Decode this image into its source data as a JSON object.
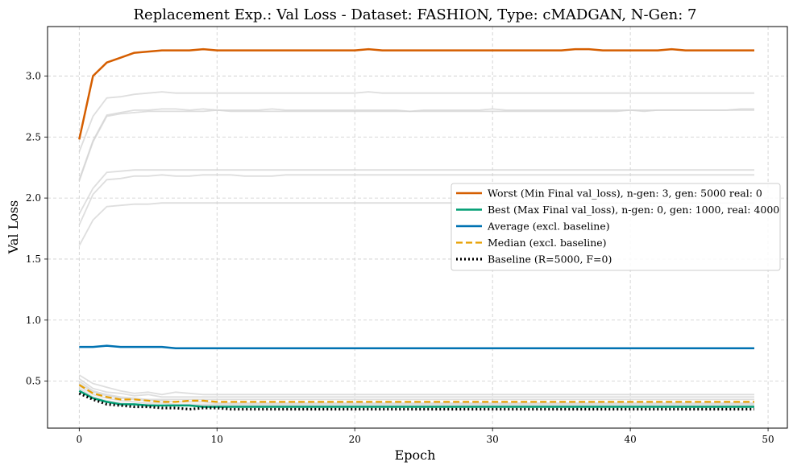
{
  "chart_data": {
    "type": "line",
    "title": "Replacement Exp.: Val Loss - Dataset: FASHION, Type: cMADGAN, N-Gen: 7",
    "xlabel": "Epoch",
    "ylabel": "Val Loss",
    "xlim": [
      -2.3,
      51.4
    ],
    "ylim": [
      0.115,
      3.405
    ],
    "xticks": [
      0,
      10,
      20,
      30,
      40,
      50
    ],
    "yticks": [
      0.5,
      1.0,
      1.5,
      2.0,
      2.5,
      3.0
    ],
    "xtick_labels": [
      "0",
      "10",
      "20",
      "30",
      "40",
      "50"
    ],
    "ytick_labels": [
      "0.5",
      "1.0",
      "1.5",
      "2.0",
      "2.5",
      "3.0"
    ],
    "grid": true,
    "legend_position": "center-right",
    "x": [
      0,
      1,
      2,
      3,
      4,
      5,
      6,
      7,
      8,
      9,
      10,
      11,
      12,
      13,
      14,
      15,
      16,
      17,
      18,
      19,
      20,
      21,
      22,
      23,
      24,
      25,
      26,
      27,
      28,
      29,
      30,
      31,
      32,
      33,
      34,
      35,
      36,
      37,
      38,
      39,
      40,
      41,
      42,
      43,
      44,
      45,
      46,
      47,
      48,
      49
    ],
    "series": [
      {
        "name": "Worst (Min Final val_loss), n-gen: 3, gen: 5000 real: 0",
        "color": "#d55e00",
        "dash": "solid",
        "values": [
          2.48,
          3.0,
          3.11,
          3.15,
          3.19,
          3.2,
          3.21,
          3.21,
          3.21,
          3.22,
          3.21,
          3.21,
          3.21,
          3.21,
          3.21,
          3.21,
          3.21,
          3.21,
          3.21,
          3.21,
          3.21,
          3.22,
          3.21,
          3.21,
          3.21,
          3.21,
          3.21,
          3.21,
          3.21,
          3.21,
          3.21,
          3.21,
          3.21,
          3.21,
          3.21,
          3.21,
          3.22,
          3.22,
          3.21,
          3.21,
          3.21,
          3.21,
          3.21,
          3.22,
          3.21,
          3.21,
          3.21,
          3.21,
          3.21,
          3.21
        ]
      },
      {
        "name": "Best (Max Final val_loss), n-gen: 0, gen: 1000, real: 4000",
        "color": "#009e73",
        "dash": "solid",
        "values": [
          0.42,
          0.36,
          0.33,
          0.31,
          0.31,
          0.3,
          0.3,
          0.3,
          0.3,
          0.29,
          0.29,
          0.29,
          0.29,
          0.29,
          0.29,
          0.29,
          0.29,
          0.29,
          0.29,
          0.29,
          0.29,
          0.29,
          0.29,
          0.29,
          0.29,
          0.29,
          0.29,
          0.29,
          0.29,
          0.29,
          0.29,
          0.29,
          0.29,
          0.29,
          0.29,
          0.29,
          0.29,
          0.29,
          0.29,
          0.29,
          0.29,
          0.29,
          0.29,
          0.29,
          0.29,
          0.29,
          0.29,
          0.29,
          0.29,
          0.29
        ]
      },
      {
        "name": "Average (excl. baseline)",
        "color": "#0072b2",
        "dash": "solid",
        "values": [
          0.78,
          0.78,
          0.79,
          0.78,
          0.78,
          0.78,
          0.78,
          0.77,
          0.77,
          0.77,
          0.77,
          0.77,
          0.77,
          0.77,
          0.77,
          0.77,
          0.77,
          0.77,
          0.77,
          0.77,
          0.77,
          0.77,
          0.77,
          0.77,
          0.77,
          0.77,
          0.77,
          0.77,
          0.77,
          0.77,
          0.77,
          0.77,
          0.77,
          0.77,
          0.77,
          0.77,
          0.77,
          0.77,
          0.77,
          0.77,
          0.77,
          0.77,
          0.77,
          0.77,
          0.77,
          0.77,
          0.77,
          0.77,
          0.77,
          0.77
        ]
      },
      {
        "name": "Median (excl. baseline)",
        "color": "#e69f00",
        "dash": "dashed",
        "values": [
          0.47,
          0.4,
          0.37,
          0.35,
          0.35,
          0.34,
          0.33,
          0.33,
          0.34,
          0.34,
          0.33,
          0.33,
          0.33,
          0.33,
          0.33,
          0.33,
          0.33,
          0.33,
          0.33,
          0.33,
          0.33,
          0.33,
          0.33,
          0.33,
          0.33,
          0.33,
          0.33,
          0.33,
          0.33,
          0.33,
          0.33,
          0.33,
          0.33,
          0.33,
          0.33,
          0.33,
          0.33,
          0.33,
          0.33,
          0.33,
          0.33,
          0.33,
          0.33,
          0.33,
          0.33,
          0.33,
          0.33,
          0.33,
          0.33,
          0.33
        ]
      },
      {
        "name": "Baseline (R=5000, F=0)",
        "color": "#000000",
        "dash": "dotted",
        "values": [
          0.4,
          0.35,
          0.31,
          0.3,
          0.29,
          0.29,
          0.28,
          0.28,
          0.27,
          0.28,
          0.28,
          0.27,
          0.27,
          0.27,
          0.27,
          0.27,
          0.27,
          0.27,
          0.27,
          0.27,
          0.27,
          0.27,
          0.27,
          0.27,
          0.27,
          0.27,
          0.27,
          0.27,
          0.27,
          0.27,
          0.27,
          0.27,
          0.27,
          0.27,
          0.27,
          0.27,
          0.27,
          0.27,
          0.27,
          0.27,
          0.27,
          0.27,
          0.27,
          0.27,
          0.27,
          0.27,
          0.27,
          0.27,
          0.27,
          0.27
        ]
      }
    ],
    "background_series_color": "#d3d3d3",
    "background_series": [
      {
        "values": [
          2.38,
          2.67,
          2.82,
          2.83,
          2.85,
          2.86,
          2.87,
          2.86,
          2.86,
          2.86,
          2.86,
          2.86,
          2.86,
          2.86,
          2.86,
          2.86,
          2.86,
          2.86,
          2.86,
          2.86,
          2.86,
          2.87,
          2.86,
          2.86,
          2.86,
          2.86,
          2.86,
          2.86,
          2.86,
          2.86,
          2.86,
          2.86,
          2.86,
          2.86,
          2.86,
          2.86,
          2.86,
          2.86,
          2.86,
          2.86,
          2.86,
          2.86,
          2.86,
          2.86,
          2.86,
          2.86,
          2.86,
          2.86,
          2.86,
          2.86
        ]
      },
      {
        "values": [
          2.15,
          2.47,
          2.68,
          2.7,
          2.72,
          2.72,
          2.73,
          2.73,
          2.72,
          2.73,
          2.72,
          2.72,
          2.72,
          2.72,
          2.73,
          2.72,
          2.72,
          2.72,
          2.72,
          2.72,
          2.72,
          2.72,
          2.72,
          2.72,
          2.71,
          2.72,
          2.72,
          2.72,
          2.72,
          2.72,
          2.73,
          2.72,
          2.72,
          2.72,
          2.72,
          2.72,
          2.72,
          2.72,
          2.72,
          2.72,
          2.72,
          2.71,
          2.72,
          2.72,
          2.72,
          2.72,
          2.72,
          2.72,
          2.72,
          2.72
        ]
      },
      {
        "values": [
          2.14,
          2.46,
          2.67,
          2.69,
          2.7,
          2.71,
          2.71,
          2.71,
          2.71,
          2.71,
          2.72,
          2.71,
          2.71,
          2.71,
          2.71,
          2.71,
          2.71,
          2.71,
          2.71,
          2.71,
          2.71,
          2.71,
          2.71,
          2.71,
          2.71,
          2.71,
          2.71,
          2.71,
          2.71,
          2.71,
          2.71,
          2.71,
          2.71,
          2.71,
          2.71,
          2.71,
          2.71,
          2.71,
          2.71,
          2.71,
          2.72,
          2.72,
          2.72,
          2.72,
          2.72,
          2.72,
          2.72,
          2.72,
          2.73,
          2.73
        ]
      },
      {
        "values": [
          1.87,
          2.08,
          2.21,
          2.22,
          2.23,
          2.23,
          2.23,
          2.23,
          2.23,
          2.23,
          2.23,
          2.23,
          2.23,
          2.23,
          2.23,
          2.23,
          2.23,
          2.23,
          2.23,
          2.23,
          2.23,
          2.23,
          2.23,
          2.23,
          2.23,
          2.23,
          2.23,
          2.23,
          2.23,
          2.23,
          2.23,
          2.23,
          2.23,
          2.23,
          2.23,
          2.23,
          2.23,
          2.23,
          2.23,
          2.23,
          2.23,
          2.23,
          2.23,
          2.23,
          2.23,
          2.23,
          2.23,
          2.23,
          2.23,
          2.23
        ]
      },
      {
        "values": [
          1.78,
          2.03,
          2.15,
          2.16,
          2.18,
          2.18,
          2.19,
          2.18,
          2.18,
          2.19,
          2.19,
          2.19,
          2.18,
          2.18,
          2.18,
          2.19,
          2.19,
          2.19,
          2.19,
          2.19,
          2.19,
          2.19,
          2.19,
          2.19,
          2.19,
          2.19,
          2.19,
          2.19,
          2.19,
          2.19,
          2.19,
          2.19,
          2.19,
          2.19,
          2.19,
          2.19,
          2.19,
          2.19,
          2.19,
          2.19,
          2.19,
          2.19,
          2.19,
          2.19,
          2.19,
          2.19,
          2.19,
          2.19,
          2.19,
          2.19
        ]
      },
      {
        "values": [
          1.61,
          1.82,
          1.93,
          1.94,
          1.95,
          1.95,
          1.96,
          1.96,
          1.96,
          1.96,
          1.96,
          1.96,
          1.96,
          1.96,
          1.96,
          1.96,
          1.96,
          1.96,
          1.96,
          1.96,
          1.96,
          1.96,
          1.96,
          1.96,
          1.96,
          1.96,
          1.96,
          1.96,
          1.96,
          1.96,
          1.96,
          1.96,
          1.96,
          1.96,
          1.96,
          1.96,
          1.96,
          1.96,
          1.96,
          1.96,
          1.96,
          1.96,
          1.96,
          1.96,
          1.96,
          1.96,
          1.96,
          1.96,
          1.96,
          1.96
        ]
      },
      {
        "values": [
          0.55,
          0.48,
          0.45,
          0.42,
          0.4,
          0.41,
          0.39,
          0.41,
          0.4,
          0.39,
          0.39,
          0.39,
          0.39,
          0.39,
          0.39,
          0.39,
          0.39,
          0.39,
          0.39,
          0.39,
          0.39,
          0.39,
          0.39,
          0.39,
          0.39,
          0.39,
          0.39,
          0.39,
          0.39,
          0.39,
          0.39,
          0.39,
          0.39,
          0.39,
          0.39,
          0.39,
          0.39,
          0.39,
          0.39,
          0.39,
          0.39,
          0.39,
          0.39,
          0.39,
          0.39,
          0.39,
          0.39,
          0.39,
          0.39,
          0.39
        ]
      },
      {
        "values": [
          0.52,
          0.44,
          0.41,
          0.4,
          0.38,
          0.39,
          0.37,
          0.37,
          0.37,
          0.37,
          0.37,
          0.37,
          0.37,
          0.37,
          0.37,
          0.37,
          0.37,
          0.37,
          0.37,
          0.37,
          0.37,
          0.37,
          0.37,
          0.37,
          0.37,
          0.37,
          0.37,
          0.37,
          0.37,
          0.37,
          0.37,
          0.37,
          0.37,
          0.37,
          0.37,
          0.37,
          0.37,
          0.37,
          0.37,
          0.37,
          0.37,
          0.37,
          0.37,
          0.37,
          0.37,
          0.37,
          0.37,
          0.37,
          0.37,
          0.37
        ]
      },
      {
        "values": [
          0.5,
          0.42,
          0.39,
          0.37,
          0.36,
          0.35,
          0.35,
          0.35,
          0.35,
          0.35,
          0.35,
          0.35,
          0.35,
          0.35,
          0.35,
          0.35,
          0.35,
          0.35,
          0.35,
          0.35,
          0.35,
          0.35,
          0.35,
          0.35,
          0.35,
          0.35,
          0.35,
          0.35,
          0.35,
          0.35,
          0.35,
          0.35,
          0.35,
          0.35,
          0.35,
          0.35,
          0.35,
          0.35,
          0.35,
          0.35,
          0.35,
          0.35,
          0.35,
          0.35,
          0.35,
          0.35,
          0.35,
          0.35,
          0.35,
          0.35
        ]
      },
      {
        "values": [
          0.48,
          0.41,
          0.38,
          0.36,
          0.35,
          0.34,
          0.34,
          0.33,
          0.33,
          0.33,
          0.32,
          0.32,
          0.32,
          0.32,
          0.32,
          0.32,
          0.32,
          0.32,
          0.32,
          0.32,
          0.32,
          0.32,
          0.32,
          0.32,
          0.32,
          0.32,
          0.32,
          0.32,
          0.32,
          0.32,
          0.32,
          0.32,
          0.32,
          0.32,
          0.32,
          0.32,
          0.32,
          0.32,
          0.32,
          0.32,
          0.32,
          0.32,
          0.32,
          0.32,
          0.32,
          0.32,
          0.32,
          0.32,
          0.32,
          0.32
        ]
      },
      {
        "values": [
          0.46,
          0.39,
          0.36,
          0.34,
          0.33,
          0.32,
          0.32,
          0.31,
          0.31,
          0.31,
          0.31,
          0.31,
          0.31,
          0.31,
          0.31,
          0.31,
          0.31,
          0.31,
          0.31,
          0.31,
          0.31,
          0.31,
          0.31,
          0.31,
          0.31,
          0.31,
          0.31,
          0.31,
          0.31,
          0.31,
          0.31,
          0.31,
          0.31,
          0.31,
          0.31,
          0.31,
          0.31,
          0.31,
          0.31,
          0.31,
          0.31,
          0.31,
          0.31,
          0.31,
          0.31,
          0.31,
          0.31,
          0.31,
          0.31,
          0.31
        ]
      },
      {
        "values": [
          0.44,
          0.37,
          0.34,
          0.32,
          0.31,
          0.31,
          0.3,
          0.3,
          0.3,
          0.3,
          0.3,
          0.3,
          0.3,
          0.3,
          0.3,
          0.3,
          0.3,
          0.3,
          0.3,
          0.3,
          0.3,
          0.3,
          0.3,
          0.3,
          0.3,
          0.3,
          0.3,
          0.3,
          0.3,
          0.3,
          0.3,
          0.3,
          0.3,
          0.3,
          0.3,
          0.3,
          0.3,
          0.3,
          0.3,
          0.3,
          0.3,
          0.3,
          0.3,
          0.3,
          0.3,
          0.3,
          0.3,
          0.3,
          0.3,
          0.3
        ]
      }
    ]
  }
}
